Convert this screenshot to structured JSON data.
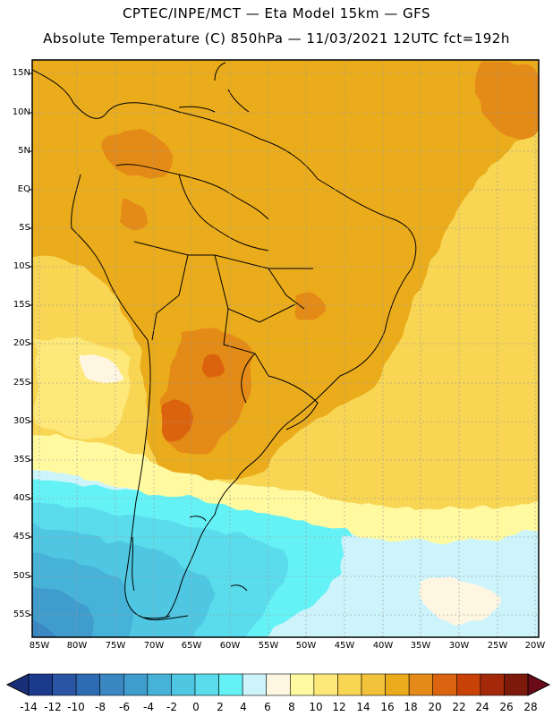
{
  "header": {
    "line1": "CPTEC/INPE/MCT —  Eta Model 15km — GFS",
    "line2": "Absolute Temperature (C) 850hPa — 11/03/2021 12UTC fct=192h"
  },
  "map": {
    "lat_labels": [
      "15N",
      "10N",
      "5N",
      "EQ",
      "5S",
      "10S",
      "15S",
      "20S",
      "25S",
      "30S",
      "35S",
      "40S",
      "45S",
      "50S",
      "55S"
    ],
    "lon_labels": [
      "85W",
      "80W",
      "75W",
      "70W",
      "65W",
      "60W",
      "55W",
      "50W",
      "45W",
      "40W",
      "35W",
      "30W",
      "25W",
      "20W"
    ]
  },
  "colorbar": {
    "labels": [
      "-14",
      "-12",
      "-10",
      "-8",
      "-6",
      "-4",
      "-2",
      "0",
      "2",
      "4",
      "6",
      "8",
      "10",
      "12",
      "14",
      "16",
      "18",
      "20",
      "22",
      "24",
      "26",
      "28"
    ],
    "colors": [
      "#1b3a8c",
      "#2a55a4",
      "#2d6cb2",
      "#3a87c2",
      "#3f9ccd",
      "#46b2d8",
      "#4fc7e3",
      "#5adcec",
      "#65f2f6",
      "#cdf4fb",
      "#fff6e2",
      "#fffaa0",
      "#fde879",
      "#f8d552",
      "#f1c23a",
      "#ebac1c",
      "#e48a18",
      "#db6410",
      "#c84208",
      "#a4280a",
      "#7c1a0c"
    ],
    "under_color": "#1a2f7a",
    "over_color": "#6a0a18"
  }
}
